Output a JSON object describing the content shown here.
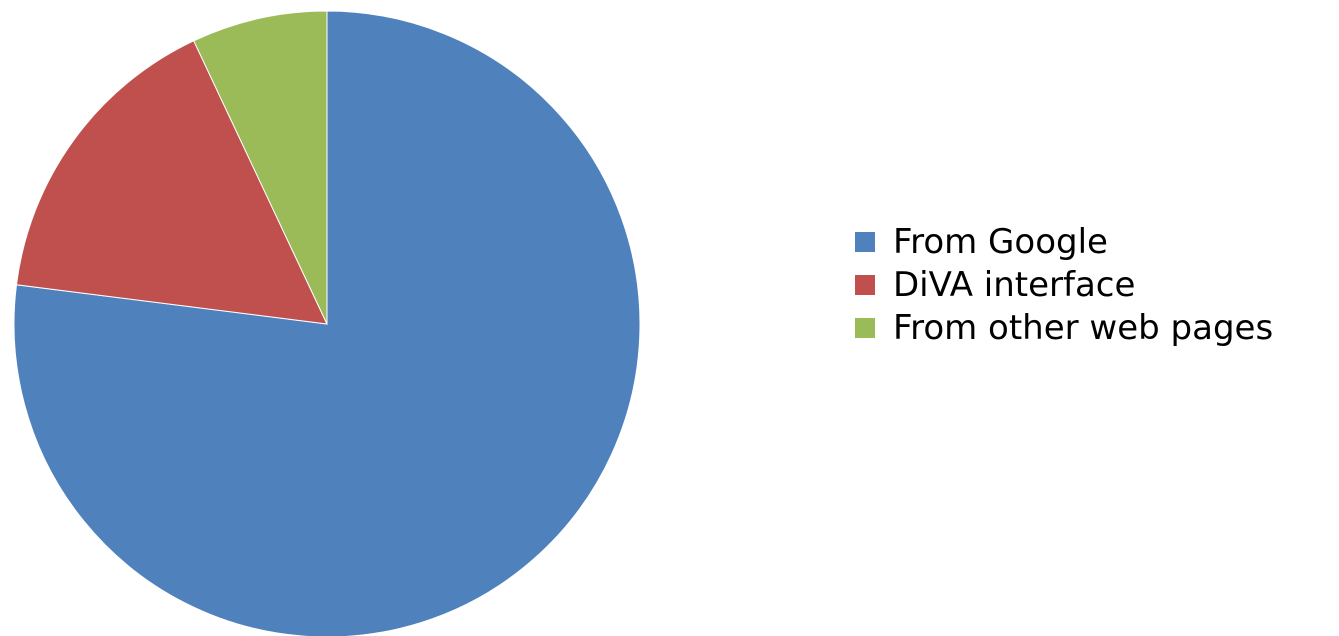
{
  "chart_data": {
    "type": "pie",
    "categories": [
      "From Google",
      "DiVA interface",
      "From other web pages"
    ],
    "values": [
      77,
      16,
      7
    ],
    "colors": [
      "#4F81BD",
      "#C0504D",
      "#9BBB59"
    ],
    "start_angle_deg": 0,
    "direction": "clockwise",
    "legend_position": "right"
  }
}
